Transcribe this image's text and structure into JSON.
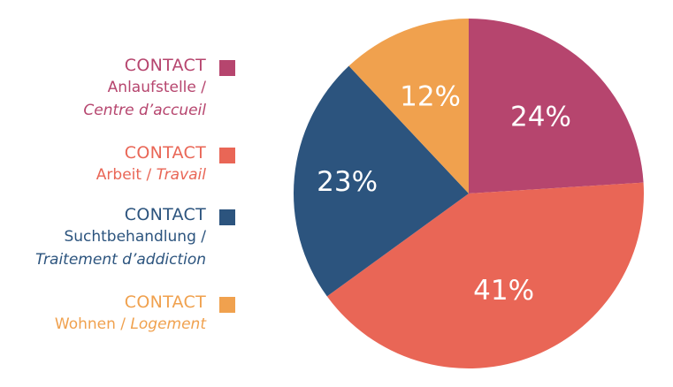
{
  "chart_data": {
    "type": "pie",
    "slices": [
      {
        "label": "24%",
        "value": 24,
        "color": "#b6456e"
      },
      {
        "label": "41%",
        "value": 41,
        "color": "#e96656"
      },
      {
        "label": "23%",
        "value": 23,
        "color": "#2c547e"
      },
      {
        "label": "12%",
        "value": 12,
        "color": "#f0a14e"
      }
    ],
    "legend": [
      {
        "head": "CONTACT",
        "line1": "Anlaufstelle /",
        "line2": "Centre d’accueil",
        "color": "#b6456e"
      },
      {
        "head": "CONTACT",
        "line1": "Arbeit / ",
        "line1_italic": "Travail",
        "color": "#e96656"
      },
      {
        "head": "CONTACT",
        "line1": "Suchtbehandlung /",
        "line2": "Traitement d’addiction",
        "color": "#2c547e"
      },
      {
        "head": "CONTACT",
        "line1": "Wohnen / ",
        "line1_italic": "Logement",
        "color": "#f0a14e"
      }
    ],
    "legend_position": "left"
  }
}
